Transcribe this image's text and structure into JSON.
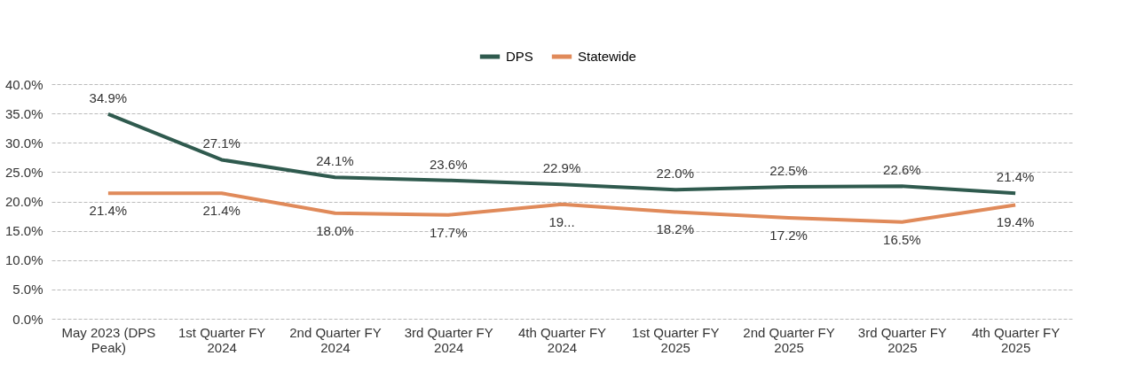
{
  "chart_data": {
    "type": "line",
    "categories": [
      "May 2023 (DPS Peak)",
      "1st Quarter FY 2024",
      "2nd Quarter FY 2024",
      "3rd Quarter FY 2024",
      "4th Quarter FY 2024",
      "1st Quarter FY 2025",
      "2nd Quarter FY 2025",
      "3rd Quarter FY 2025",
      "4th Quarter FY 2025"
    ],
    "series": [
      {
        "name": "DPS",
        "color": "#2f5a4e",
        "values": [
          34.9,
          27.1,
          24.1,
          23.6,
          22.9,
          22.0,
          22.5,
          22.6,
          21.4
        ],
        "value_labels": [
          "34.9%",
          "27.1%",
          "24.1%",
          "23.6%",
          "22.9%",
          "22.0%",
          "22.5%",
          "22.6%",
          "21.4%"
        ]
      },
      {
        "name": "Statewide",
        "color": "#e08a5a",
        "values": [
          21.4,
          21.4,
          18.0,
          17.7,
          19.5,
          18.2,
          17.2,
          16.5,
          19.4
        ],
        "value_labels": [
          "21.4%",
          "21.4%",
          "18.0%",
          "17.7%",
          "19...",
          "18.2%",
          "17.2%",
          "16.5%",
          "19.4%"
        ]
      }
    ],
    "ylim": [
      0,
      40
    ],
    "yticks": [
      {
        "value": 0,
        "label": "0.0%"
      },
      {
        "value": 5,
        "label": "5.0%"
      },
      {
        "value": 10,
        "label": "10.0%"
      },
      {
        "value": 15,
        "label": "15.0%"
      },
      {
        "value": 20,
        "label": "20.0%"
      },
      {
        "value": 25,
        "label": "25.0%"
      },
      {
        "value": 30,
        "label": "30.0%"
      },
      {
        "value": 35,
        "label": "35.0%"
      },
      {
        "value": 40,
        "label": "40.0%"
      }
    ],
    "grid": "y",
    "legend": "top",
    "marker": "none",
    "line_style": "solid"
  }
}
